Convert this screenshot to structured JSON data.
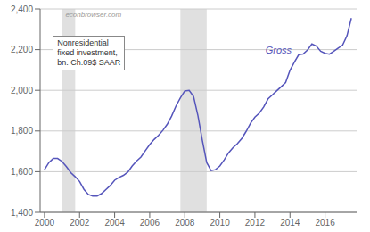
{
  "chart_data": {
    "type": "line",
    "x": [
      2000.0,
      2000.25,
      2000.5,
      2000.75,
      2001.0,
      2001.25,
      2001.5,
      2001.75,
      2002.0,
      2002.25,
      2002.5,
      2002.75,
      2003.0,
      2003.25,
      2003.5,
      2003.75,
      2004.0,
      2004.25,
      2004.5,
      2004.75,
      2005.0,
      2005.25,
      2005.5,
      2005.75,
      2006.0,
      2006.25,
      2006.5,
      2006.75,
      2007.0,
      2007.25,
      2007.5,
      2007.75,
      2008.0,
      2008.25,
      2008.5,
      2008.75,
      2009.0,
      2009.25,
      2009.5,
      2009.75,
      2010.0,
      2010.25,
      2010.5,
      2010.75,
      2011.0,
      2011.25,
      2011.5,
      2011.75,
      2012.0,
      2012.25,
      2012.5,
      2012.75,
      2013.0,
      2013.25,
      2013.5,
      2013.75,
      2014.0,
      2014.25,
      2014.5,
      2014.75,
      2015.0,
      2015.25,
      2015.5,
      2015.75,
      2016.0,
      2016.25,
      2016.5,
      2016.75,
      2017.0,
      2017.25,
      2017.5
    ],
    "values": [
      1610,
      1645,
      1665,
      1665,
      1650,
      1625,
      1595,
      1575,
      1552,
      1513,
      1488,
      1480,
      1480,
      1492,
      1512,
      1532,
      1558,
      1572,
      1582,
      1598,
      1628,
      1652,
      1672,
      1703,
      1733,
      1758,
      1778,
      1803,
      1833,
      1873,
      1923,
      1963,
      1997,
      2000,
      1970,
      1875,
      1755,
      1645,
      1605,
      1610,
      1628,
      1658,
      1693,
      1718,
      1738,
      1763,
      1798,
      1838,
      1868,
      1888,
      1918,
      1958,
      1978,
      1998,
      2018,
      2038,
      2098,
      2138,
      2175,
      2178,
      2198,
      2228,
      2218,
      2192,
      2182,
      2178,
      2192,
      2208,
      2222,
      2268,
      2355
    ],
    "color": "#5555bb",
    "recession_bands": [
      [
        2001.0,
        2001.75
      ],
      [
        2007.75,
        2009.25
      ]
    ],
    "xlim": [
      1999.75,
      2017.8
    ],
    "xticks": [
      2000,
      2002,
      2004,
      2006,
      2008,
      2010,
      2012,
      2014,
      2016
    ],
    "ylim": [
      1400,
      2400
    ],
    "yticks": [
      {
        "value": 1400,
        "label": "1,400"
      },
      {
        "value": 1600,
        "label": "1,600"
      },
      {
        "value": 1800,
        "label": "1,800"
      },
      {
        "value": 2000,
        "label": "2,000"
      },
      {
        "value": 2200,
        "label": "2,200"
      },
      {
        "value": 2400,
        "label": "2,400"
      }
    ],
    "grid": true,
    "annotations": [
      {
        "text": "econbrowser.com"
      },
      {
        "text": "Nonresidential\nfixed investment,\nbn. Ch.09$ SAAR"
      },
      {
        "text": "Gross",
        "x": 2012.5,
        "y": 2200
      }
    ]
  }
}
